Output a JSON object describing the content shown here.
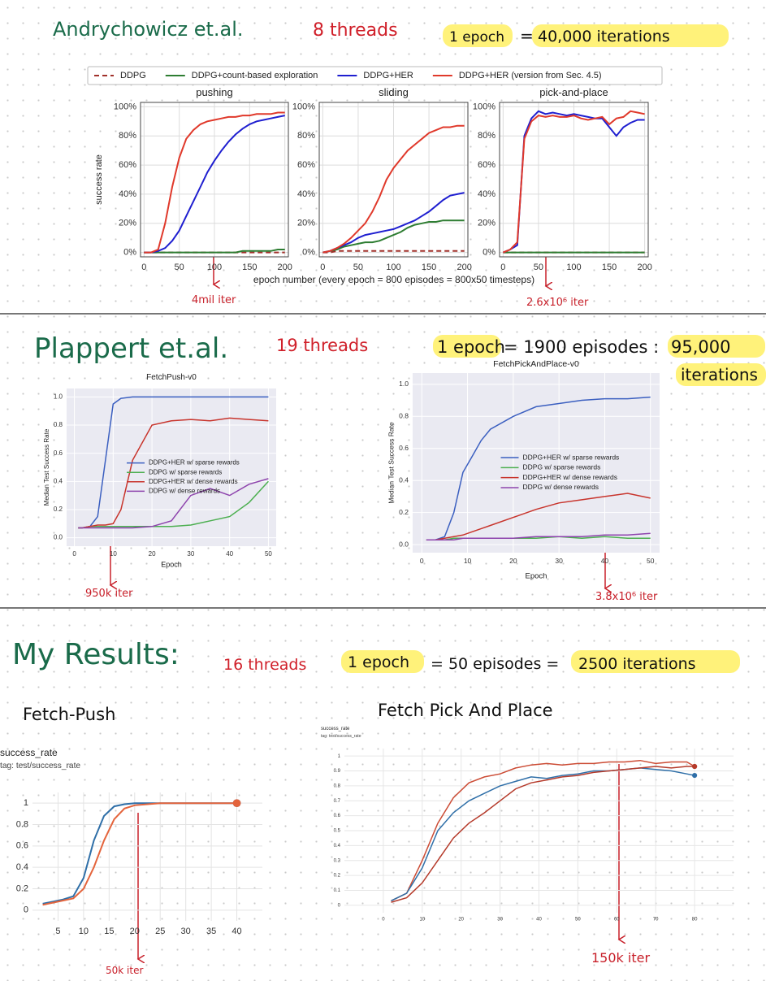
{
  "notes": {
    "sec1": {
      "authors": "Andrychowicz et.al.",
      "threads": "8 threads",
      "epoch": "1 epoch",
      "equals": "=",
      "iterations": "40,000 iterations"
    },
    "ann1": {
      "a": "4mil iter",
      "b": "2.6x10⁶ iter"
    },
    "sec2": {
      "authors": "Plappert et.al.",
      "threads": "19 threads",
      "epoch": "1 epoch",
      "rest": "= 1900 episodes :",
      "number": "95,000",
      "iterations": "iterations"
    },
    "ann2": {
      "a": "950k iter",
      "b": "3.8x10⁶ iter"
    },
    "sec3": {
      "title": "My Results:",
      "threads": "16 threads",
      "epoch": "1 epoch",
      "rest": "= 50 episodes =",
      "iterations": "2500 iterations"
    },
    "headings": [
      "Fetch-Push",
      "Fetch Pick And Place"
    ],
    "ann3": {
      "a": "50k iter",
      "b": "150k iter"
    }
  },
  "chart_data": [
    {
      "type": "line",
      "title": "pushing",
      "ylabel": "success rate",
      "legend": "top",
      "grid": true,
      "x": [
        0,
        10,
        20,
        30,
        40,
        50,
        60,
        70,
        80,
        90,
        100,
        110,
        120,
        130,
        140,
        150,
        160,
        170,
        180,
        190,
        200
      ],
      "xlim": [
        -5,
        205
      ],
      "ylim": [
        -3,
        103
      ],
      "xticks": [
        0,
        50,
        100,
        150,
        200
      ],
      "yticks": [
        {
          "value": 0,
          "label": "0%"
        },
        {
          "value": 20,
          "label": "20%"
        },
        {
          "value": 40,
          "label": "40%"
        },
        {
          "value": 60,
          "label": "60%"
        },
        {
          "value": 80,
          "label": "80%"
        },
        {
          "value": 100,
          "label": "100%"
        }
      ],
      "series": [
        {
          "name": "DDPG",
          "color": "#a0302a",
          "dash": true,
          "values": [
            0,
            0,
            0,
            0,
            0,
            0,
            0,
            0,
            0,
            0,
            0,
            0,
            0,
            0,
            0,
            0,
            0,
            0,
            0,
            0,
            0
          ]
        },
        {
          "name": "DDPG+count-based exploration",
          "color": "#2e7d32",
          "values": [
            0,
            0,
            0,
            0,
            0,
            0,
            0,
            0,
            0,
            0,
            0,
            0,
            0,
            0,
            1,
            1,
            1,
            1,
            1,
            2,
            2
          ]
        },
        {
          "name": "DDPG+HER",
          "color": "#1f1fd0",
          "values": [
            0,
            0,
            1,
            3,
            8,
            15,
            25,
            35,
            45,
            55,
            63,
            70,
            76,
            81,
            85,
            88,
            90,
            91,
            92,
            93,
            94
          ]
        },
        {
          "name": "DDPG+HER (version from Sec. 4.5)",
          "color": "#e0392b",
          "values": [
            0,
            0,
            2,
            20,
            45,
            65,
            78,
            84,
            88,
            90,
            91,
            92,
            93,
            93,
            94,
            94,
            95,
            95,
            95,
            96,
            96
          ]
        }
      ]
    },
    {
      "type": "line",
      "title": "sliding",
      "xlabel": "epoch number (every epoch = 800 episodes = 800x50 timesteps)",
      "grid": true,
      "x": [
        0,
        10,
        20,
        30,
        40,
        50,
        60,
        70,
        80,
        90,
        100,
        110,
        120,
        130,
        140,
        150,
        160,
        170,
        180,
        190,
        200
      ],
      "xlim": [
        -5,
        205
      ],
      "ylim": [
        -3,
        103
      ],
      "xticks": [
        0,
        50,
        100,
        150,
        200
      ],
      "yticks": [
        {
          "value": 0,
          "label": "0%"
        },
        {
          "value": 20,
          "label": "20%"
        },
        {
          "value": 40,
          "label": "40%"
        },
        {
          "value": 60,
          "label": "60%"
        },
        {
          "value": 80,
          "label": "80%"
        },
        {
          "value": 100,
          "label": "100%"
        }
      ],
      "series": [
        {
          "color": "#a0302a",
          "dash": true,
          "values": [
            0,
            0,
            1,
            1,
            1,
            1,
            1,
            1,
            1,
            1,
            1,
            1,
            1,
            1,
            1,
            1,
            1,
            1,
            1,
            1,
            1
          ]
        },
        {
          "color": "#2e7d32",
          "values": [
            0,
            1,
            2,
            4,
            5,
            6,
            7,
            7,
            8,
            10,
            12,
            14,
            17,
            19,
            20,
            21,
            21,
            22,
            22,
            22,
            22
          ]
        },
        {
          "color": "#1f1fd0",
          "values": [
            0,
            1,
            3,
            5,
            7,
            10,
            12,
            13,
            14,
            15,
            16,
            18,
            20,
            22,
            25,
            28,
            32,
            36,
            39,
            40,
            41
          ]
        },
        {
          "color": "#e0392b",
          "values": [
            0,
            1,
            3,
            6,
            10,
            15,
            20,
            28,
            38,
            50,
            58,
            64,
            70,
            74,
            78,
            82,
            84,
            86,
            86,
            87,
            87
          ]
        }
      ]
    },
    {
      "type": "line",
      "title": "pick-and-place",
      "grid": true,
      "x": [
        0,
        10,
        20,
        30,
        40,
        50,
        60,
        70,
        80,
        90,
        100,
        110,
        120,
        130,
        140,
        150,
        160,
        170,
        180,
        190,
        200
      ],
      "xlim": [
        -5,
        205
      ],
      "ylim": [
        -3,
        103
      ],
      "xticks": [
        0,
        50,
        100,
        150,
        200
      ],
      "yticks": [
        {
          "value": 0,
          "label": "0%"
        },
        {
          "value": 20,
          "label": "20%"
        },
        {
          "value": 40,
          "label": "40%"
        },
        {
          "value": 60,
          "label": "60%"
        },
        {
          "value": 80,
          "label": "80%"
        },
        {
          "value": 100,
          "label": "100%"
        }
      ],
      "series": [
        {
          "color": "#a0302a",
          "dash": true,
          "values": [
            0,
            0,
            0,
            0,
            0,
            0,
            0,
            0,
            0,
            0,
            0,
            0,
            0,
            0,
            0,
            0,
            0,
            0,
            0,
            0,
            0
          ]
        },
        {
          "color": "#2e7d32",
          "values": [
            0,
            0,
            0,
            0,
            0,
            0,
            0,
            0,
            0,
            0,
            0,
            0,
            0,
            0,
            0,
            0,
            0,
            0,
            0,
            0,
            0
          ]
        },
        {
          "color": "#1f1fd0",
          "values": [
            0,
            2,
            5,
            80,
            92,
            97,
            95,
            96,
            95,
            94,
            95,
            94,
            93,
            92,
            92,
            86,
            80,
            86,
            89,
            91,
            91
          ]
        },
        {
          "color": "#e0392b",
          "values": [
            0,
            2,
            7,
            78,
            90,
            94,
            93,
            94,
            93,
            93,
            94,
            92,
            91,
            92,
            93,
            88,
            92,
            93,
            97,
            96,
            95
          ]
        }
      ]
    },
    {
      "type": "line",
      "title": "FetchPush-v0",
      "xlabel": "Epoch",
      "ylabel": "Median Test Success Rate",
      "legend": "center right",
      "grid": true,
      "x": [
        1,
        2,
        4,
        6,
        8,
        10,
        12,
        15,
        20,
        25,
        30,
        35,
        40,
        45,
        50
      ],
      "xlim": [
        -2,
        52
      ],
      "ylim": [
        -0.06,
        1.06
      ],
      "xticks": [
        0,
        10,
        20,
        30,
        40,
        50
      ],
      "yticks": [
        {
          "value": 0,
          "label": "0.0"
        },
        0.2,
        0.4,
        0.6,
        0.8,
        {
          "value": 1,
          "label": "1.0"
        }
      ],
      "series": [
        {
          "name": "DDPG+HER w/ sparse rewards",
          "color": "#3b5fc0",
          "values": [
            0.07,
            0.07,
            0.08,
            0.15,
            0.55,
            0.95,
            0.99,
            1,
            1,
            1,
            1,
            1,
            1,
            1,
            1
          ]
        },
        {
          "name": "DDPG w/ sparse rewards",
          "color": "#4caf50",
          "values": [
            0.07,
            0.07,
            0.08,
            0.08,
            0.08,
            0.08,
            0.08,
            0.08,
            0.08,
            0.08,
            0.09,
            0.12,
            0.15,
            0.25,
            0.4
          ]
        },
        {
          "name": "DDPG+HER w/ dense rewards",
          "color": "#c8342c",
          "values": [
            0.07,
            0.07,
            0.08,
            0.09,
            0.09,
            0.1,
            0.2,
            0.55,
            0.8,
            0.83,
            0.84,
            0.83,
            0.85,
            0.84,
            0.83
          ]
        },
        {
          "name": "DDPG w/ dense rewards",
          "color": "#8e44ad",
          "values": [
            0.07,
            0.07,
            0.07,
            0.07,
            0.07,
            0.07,
            0.07,
            0.07,
            0.08,
            0.12,
            0.3,
            0.35,
            0.3,
            0.38,
            0.42
          ]
        }
      ]
    },
    {
      "type": "line",
      "title": "FetchPickAndPlace-v0",
      "xlabel": "Epoch",
      "ylabel": "Median Test Success Rate",
      "legend": "center right",
      "grid": true,
      "x": [
        1,
        3,
        5,
        7,
        9,
        11,
        13,
        15,
        20,
        25,
        30,
        35,
        40,
        45,
        50
      ],
      "xlim": [
        -2,
        52
      ],
      "ylim": [
        -0.05,
        1.07
      ],
      "xticks": [
        0,
        10,
        20,
        30,
        40,
        50
      ],
      "yticks": [
        {
          "value": 0,
          "label": "0.0"
        },
        0.2,
        0.4,
        0.6,
        0.8,
        {
          "value": 1,
          "label": "1.0"
        }
      ],
      "series": [
        {
          "name": "DDPG+HER w/ sparse rewards",
          "color": "#3b5fc0",
          "values": [
            0.03,
            0.03,
            0.05,
            0.2,
            0.45,
            0.55,
            0.65,
            0.72,
            0.8,
            0.86,
            0.88,
            0.9,
            0.91,
            0.91,
            0.92
          ]
        },
        {
          "name": "DDPG w/ sparse rewards",
          "color": "#4caf50",
          "values": [
            0.03,
            0.03,
            0.03,
            0.04,
            0.04,
            0.04,
            0.04,
            0.04,
            0.04,
            0.04,
            0.05,
            0.04,
            0.05,
            0.04,
            0.04
          ]
        },
        {
          "name": "DDPG+HER w/ dense rewards",
          "color": "#c8342c",
          "values": [
            0.03,
            0.03,
            0.04,
            0.05,
            0.06,
            0.08,
            0.1,
            0.12,
            0.17,
            0.22,
            0.26,
            0.28,
            0.3,
            0.32,
            0.29
          ]
        },
        {
          "name": "DDPG w/ dense rewards",
          "color": "#8e44ad",
          "values": [
            0.03,
            0.03,
            0.03,
            0.03,
            0.04,
            0.04,
            0.04,
            0.04,
            0.04,
            0.05,
            0.05,
            0.05,
            0.06,
            0.06,
            0.07
          ]
        }
      ]
    },
    {
      "type": "line",
      "title": "success_rate",
      "subtitle": "tag: test/success_rate",
      "grid": true,
      "end_marker": true,
      "x": [
        2,
        4,
        6,
        8,
        10,
        12,
        14,
        16,
        18,
        20,
        25,
        30,
        40
      ],
      "xlim": [
        0,
        45
      ],
      "ylim": [
        -0.1,
        1.1
      ],
      "xticks": [
        5,
        10,
        15,
        20,
        25,
        30,
        35,
        40
      ],
      "yticks": [
        0,
        0.2,
        0.4,
        0.6,
        0.8,
        1
      ],
      "series": [
        {
          "color": "#2f6fa8",
          "values": [
            0.06,
            0.08,
            0.1,
            0.13,
            0.3,
            0.65,
            0.88,
            0.97,
            0.99,
            1,
            1,
            1,
            1
          ]
        },
        {
          "color": "#e4643c",
          "values": [
            0.05,
            0.07,
            0.09,
            0.11,
            0.2,
            0.4,
            0.65,
            0.85,
            0.95,
            0.98,
            1,
            1,
            1
          ]
        }
      ]
    },
    {
      "type": "line",
      "title": "success_rate",
      "subtitle": "tag: test/success_rate",
      "grid": true,
      "end_marker": true,
      "x": [
        2,
        6,
        10,
        14,
        18,
        22,
        26,
        30,
        34,
        38,
        42,
        46,
        50,
        54,
        58,
        62,
        66,
        70,
        74,
        78,
        80
      ],
      "xlim": [
        -10,
        90
      ],
      "ylim": [
        -0.05,
        1.05
      ],
      "xticks": [
        0,
        10,
        20,
        30,
        40,
        50,
        60,
        70,
        80
      ],
      "yticks": [
        0,
        0.1,
        0.2,
        0.3,
        0.4,
        0.5,
        0.6,
        0.7,
        0.8,
        0.9,
        1
      ],
      "series": [
        {
          "color": "#cc4c35",
          "values": [
            0.03,
            0.08,
            0.3,
            0.55,
            0.72,
            0.82,
            0.86,
            0.88,
            0.92,
            0.94,
            0.95,
            0.94,
            0.95,
            0.95,
            0.96,
            0.96,
            0.97,
            0.95,
            0.96,
            0.96,
            0.93
          ]
        },
        {
          "color": "#2f6fa8",
          "values": [
            0.03,
            0.08,
            0.25,
            0.5,
            0.62,
            0.7,
            0.75,
            0.8,
            0.83,
            0.86,
            0.85,
            0.87,
            0.88,
            0.9,
            0.9,
            0.91,
            0.92,
            0.91,
            0.9,
            0.88,
            0.87
          ]
        },
        {
          "color": "#b53a2a",
          "values": [
            0.02,
            0.05,
            0.15,
            0.3,
            0.45,
            0.55,
            0.62,
            0.7,
            0.78,
            0.82,
            0.84,
            0.86,
            0.87,
            0.89,
            0.9,
            0.91,
            0.92,
            0.93,
            0.92,
            0.93,
            0.93
          ]
        }
      ]
    }
  ]
}
